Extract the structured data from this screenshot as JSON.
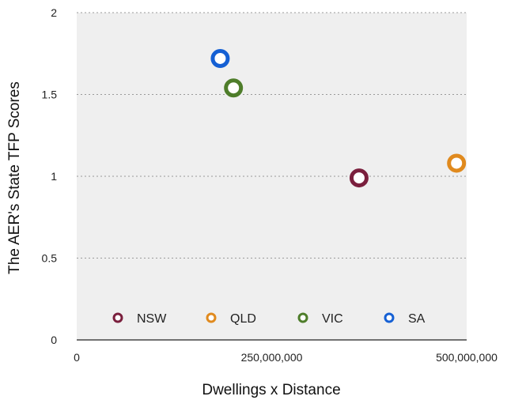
{
  "chart_data": {
    "type": "scatter",
    "title": "",
    "xlabel": "Dwellings x Distance",
    "ylabel": "The AER's State TFP Scores",
    "xlim": [
      0,
      500000000
    ],
    "ylim": [
      0,
      2
    ],
    "x_ticks": [
      0,
      250000000,
      500000000
    ],
    "x_tick_labels": [
      "0",
      "250,000,000",
      "500,000,000"
    ],
    "y_ticks": [
      0,
      0.5,
      1,
      1.5,
      2
    ],
    "y_tick_labels": [
      "0",
      "0.5",
      "1",
      "1.5",
      "2"
    ],
    "grid": "horizontal-dotted",
    "legend_position": "bottom-inside",
    "series": [
      {
        "name": "NSW",
        "color": "#7a1f3d",
        "points": [
          {
            "x": 362000000,
            "y": 0.99
          }
        ]
      },
      {
        "name": "QLD",
        "color": "#e08a1e",
        "points": [
          {
            "x": 487000000,
            "y": 1.08
          }
        ]
      },
      {
        "name": "VIC",
        "color": "#4e7d2a",
        "points": [
          {
            "x": 201000000,
            "y": 1.54
          }
        ]
      },
      {
        "name": "SA",
        "color": "#1560d4",
        "points": [
          {
            "x": 184000000,
            "y": 1.72
          }
        ]
      }
    ]
  }
}
